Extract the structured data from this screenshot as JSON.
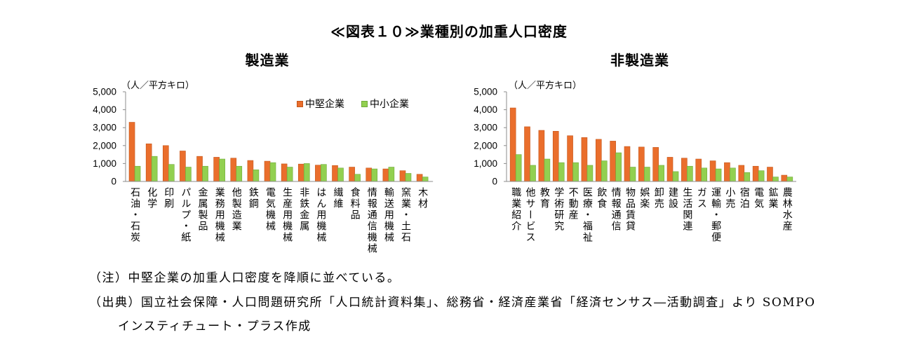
{
  "title": "≪図表１０≫業種別の加重人口密度",
  "colors": {
    "mid": "#EA6E2C",
    "mid_edge": "#C4561A",
    "small": "#92D050",
    "small_edge": "#6FA93A",
    "axis": "#8C8C8C"
  },
  "chart_data": [
    {
      "type": "bar",
      "title": "製造業",
      "ylabel": "（人／平方キロ）",
      "xlabel": "",
      "ylim": [
        0,
        5000
      ],
      "yticks": [
        {
          "value": 0,
          "label": "0"
        },
        {
          "value": 1000,
          "label": "1,000"
        },
        {
          "value": 2000,
          "label": "2,000"
        },
        {
          "value": 3000,
          "label": "3,000"
        },
        {
          "value": 4000,
          "label": "4,000"
        },
        {
          "value": 5000,
          "label": "5,000"
        }
      ],
      "grid": false,
      "legend": "top-right",
      "categories": [
        "石油・石炭",
        "化学",
        "印刷",
        "パルプ・紙",
        "金属製品",
        "業務用機械",
        "他製造業",
        "鉄鋼",
        "電気機械",
        "生産用機械",
        "非鉄金属",
        "はん用機械",
        "繊維",
        "食料品",
        "情報通信機械",
        "輸送用機械",
        "窯業・土石",
        "木材"
      ],
      "series": [
        {
          "name": "中堅企業",
          "values": [
            3300,
            2100,
            2000,
            1700,
            1400,
            1350,
            1300,
            1170,
            1130,
            980,
            970,
            910,
            890,
            800,
            750,
            700,
            600,
            400
          ]
        },
        {
          "name": "中小企業",
          "values": [
            850,
            1400,
            950,
            800,
            850,
            1250,
            850,
            650,
            1050,
            800,
            1000,
            950,
            750,
            400,
            700,
            800,
            450,
            250
          ]
        }
      ]
    },
    {
      "type": "bar",
      "title": "非製造業",
      "ylabel": "（人／平方キロ）",
      "xlabel": "",
      "ylim": [
        0,
        5000
      ],
      "yticks": [
        {
          "value": 0,
          "label": "0"
        },
        {
          "value": 1000,
          "label": "1,000"
        },
        {
          "value": 2000,
          "label": "2,000"
        },
        {
          "value": 3000,
          "label": "3,000"
        },
        {
          "value": 4000,
          "label": "4,000"
        },
        {
          "value": 5000,
          "label": "5,000"
        }
      ],
      "grid": false,
      "legend": "none",
      "categories": [
        "職業紹介",
        "他サービス",
        "教育",
        "学術研究",
        "不動産",
        "医療・福祉",
        "飲食",
        "情報通信",
        "物品賃貸",
        "娯楽",
        "卸売",
        "建設",
        "生活関連",
        "ガス",
        "運輸・郵便",
        "小売",
        "宿泊",
        "電気",
        "鉱業",
        "農林水産"
      ],
      "series": [
        {
          "name": "中堅企業",
          "values": [
            4100,
            3050,
            2850,
            2800,
            2550,
            2450,
            2350,
            2250,
            1950,
            1920,
            1900,
            1350,
            1300,
            1250,
            1150,
            1050,
            900,
            850,
            800,
            350
          ]
        },
        {
          "name": "中小企業",
          "values": [
            1500,
            900,
            1250,
            1050,
            1050,
            900,
            1150,
            1600,
            800,
            800,
            900,
            550,
            850,
            750,
            700,
            750,
            500,
            600,
            250,
            250
          ]
        }
      ]
    }
  ],
  "notes": {
    "note": "（注）中堅企業の加重人口密度を降順に並べている。",
    "source_line1": "（出典）国立社会保障・人口問題研究所「人口統計資料集」、総務省・経済産業省「経済センサス―活動調査」より SOMPO",
    "source_line2": "インスティチュート・プラス作成"
  }
}
